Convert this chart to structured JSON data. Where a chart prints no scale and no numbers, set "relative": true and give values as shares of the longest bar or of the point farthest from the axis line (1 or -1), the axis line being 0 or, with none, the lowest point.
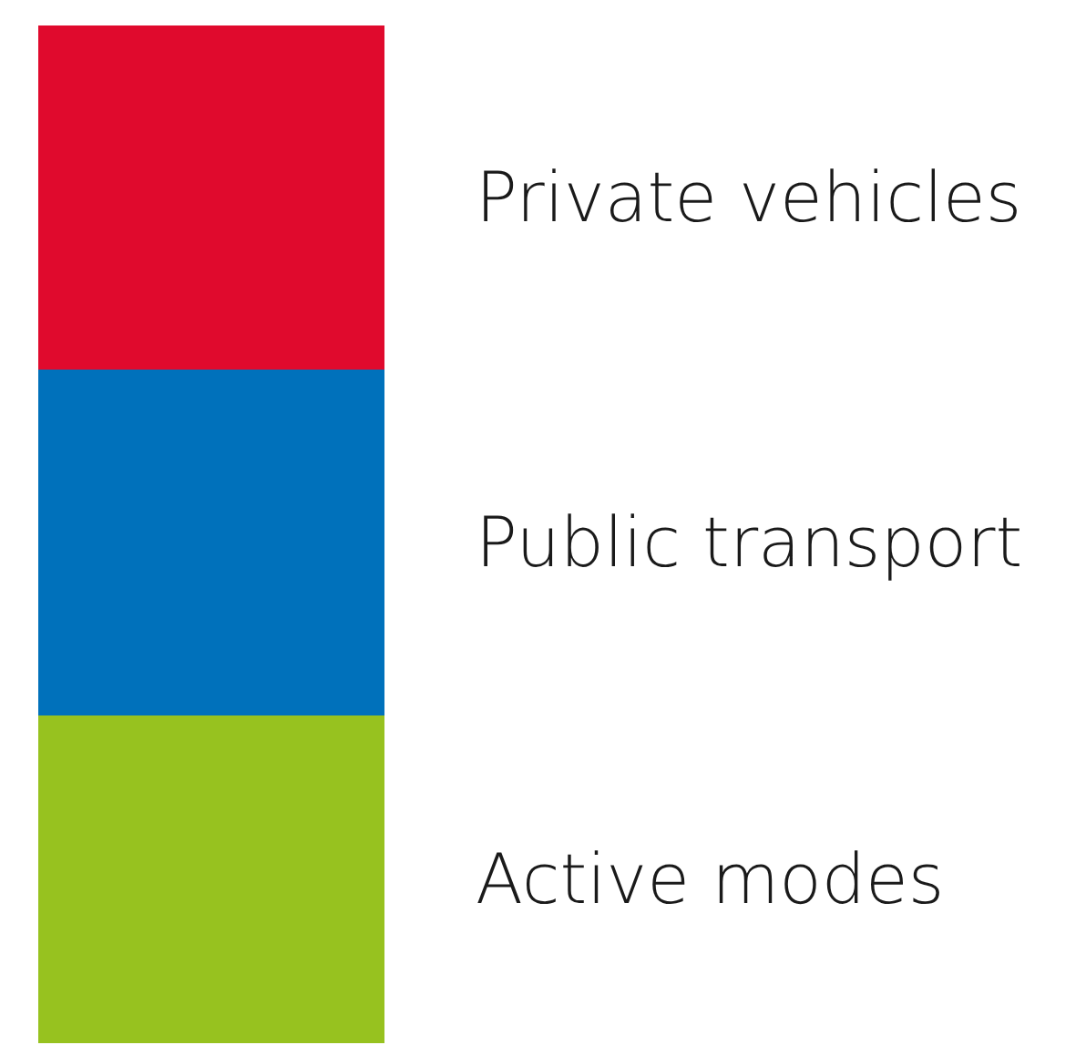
{
  "chart_data": {
    "type": "bar",
    "stacked": true,
    "relative": true,
    "categories": [
      null
    ],
    "series": [
      {
        "name": "Active modes",
        "color": "#97c21f",
        "values": [
          0.322
        ]
      },
      {
        "name": "Public transport",
        "color": "#0071bb",
        "values": [
          0.34
        ]
      },
      {
        "name": "Private vehicles",
        "color": "#e00a2d",
        "values": [
          0.338
        ]
      }
    ]
  }
}
